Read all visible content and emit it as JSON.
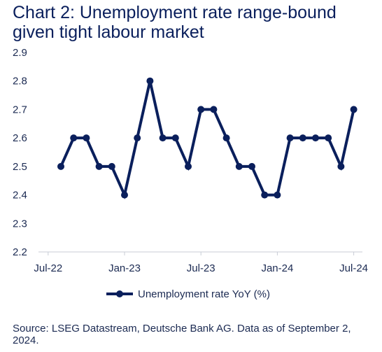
{
  "title": "Chart 2: Unemployment rate range-bound given tight labour market",
  "source": "Source: LSEG Datastream, Deutsche Bank AG. Data as of September 2, 2024.",
  "colors": {
    "series": "#0a1f5c",
    "grid": "#d9dde6",
    "axis": "#c8ccd6",
    "text": "#1b2a52"
  },
  "chart_data": {
    "type": "line",
    "title": "Chart 2: Unemployment rate range-bound given tight labour market",
    "xlabel": "",
    "ylabel": "",
    "x": [
      "2022-08",
      "2022-09",
      "2022-10",
      "2022-11",
      "2022-12",
      "2023-01",
      "2023-02",
      "2023-03",
      "2023-04",
      "2023-05",
      "2023-06",
      "2023-07",
      "2023-08",
      "2023-09",
      "2023-10",
      "2023-11",
      "2023-12",
      "2024-01",
      "2024-02",
      "2024-03",
      "2024-04",
      "2024-05",
      "2024-06",
      "2024-07"
    ],
    "x_ticks": [
      "Jul-22",
      "Jan-23",
      "Jul-23",
      "Jan-24",
      "Jul-24"
    ],
    "y_ticks": [
      "2.9",
      "2.8",
      "2.7",
      "2.6",
      "2.5",
      "2.4",
      "2.3",
      "2.2"
    ],
    "ylim": [
      2.2,
      2.9
    ],
    "grid": false,
    "legend_position": "bottom",
    "series": [
      {
        "name": "Unemployment rate YoY (%)",
        "values": [
          2.5,
          2.6,
          2.6,
          2.5,
          2.5,
          2.4,
          2.6,
          2.8,
          2.6,
          2.6,
          2.5,
          2.7,
          2.7,
          2.6,
          2.5,
          2.5,
          2.4,
          2.4,
          2.6,
          2.6,
          2.6,
          2.6,
          2.5,
          2.7
        ]
      }
    ]
  }
}
